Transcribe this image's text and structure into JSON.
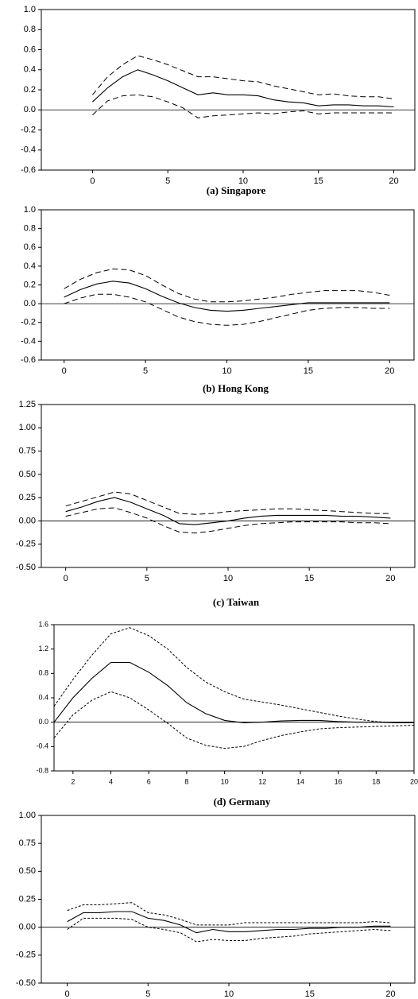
{
  "chart_data": [
    {
      "type": "line",
      "title": "(a) Singapore",
      "x": [
        0,
        1,
        2,
        3,
        4,
        5,
        6,
        7,
        8,
        9,
        10,
        11,
        12,
        13,
        14,
        15,
        16,
        17,
        18,
        19,
        20
      ],
      "xlim": [
        -3.4,
        21.4
      ],
      "xticks": [
        0,
        5,
        10,
        15,
        20
      ],
      "ylim": [
        -0.6,
        1.0
      ],
      "yticks": [
        {
          "value": 1.0,
          "label": "1.0"
        },
        0.8,
        0.6,
        0.4,
        0.2,
        {
          "value": 0,
          "label": "0.0"
        },
        -0.2,
        -0.4,
        -0.6
      ],
      "series": [
        {
          "color": "#000000",
          "dash": "solid",
          "values": [
            0.08,
            0.22,
            0.33,
            0.4,
            0.35,
            0.29,
            0.22,
            0.15,
            0.17,
            0.15,
            0.15,
            0.14,
            0.1,
            0.08,
            0.07,
            0.04,
            0.05,
            0.05,
            0.04,
            0.04,
            0.03
          ]
        },
        {
          "color": "#000000",
          "dash": "dashed",
          "values": [
            0.15,
            0.33,
            0.45,
            0.54,
            0.5,
            0.45,
            0.39,
            0.33,
            0.33,
            0.31,
            0.29,
            0.28,
            0.24,
            0.21,
            0.18,
            0.15,
            0.16,
            0.14,
            0.13,
            0.13,
            0.11
          ]
        },
        {
          "color": "#000000",
          "dash": "dashed",
          "values": [
            -0.05,
            0.09,
            0.14,
            0.15,
            0.13,
            0.08,
            0.02,
            -0.08,
            -0.06,
            -0.05,
            -0.04,
            -0.03,
            -0.04,
            -0.02,
            -0.01,
            -0.04,
            -0.03,
            -0.03,
            -0.03,
            -0.03,
            -0.03
          ]
        }
      ]
    },
    {
      "type": "line",
      "title": "(b) Hong Kong",
      "x": [
        0,
        1,
        2,
        3,
        4,
        5,
        6,
        7,
        8,
        9,
        10,
        11,
        12,
        13,
        14,
        15,
        16,
        17,
        18,
        19,
        20
      ],
      "xlim": [
        -1.4,
        21.5
      ],
      "xticks": [
        0,
        5,
        10,
        15,
        20
      ],
      "ylim": [
        -0.6,
        1.0
      ],
      "yticks": [
        {
          "value": 1.0,
          "label": "1.0"
        },
        0.8,
        0.6,
        0.4,
        0.2,
        {
          "value": 0,
          "label": "0.0"
        },
        -0.2,
        -0.4,
        -0.6
      ],
      "series": [
        {
          "color": "#000000",
          "dash": "solid",
          "values": [
            0.07,
            0.15,
            0.21,
            0.24,
            0.22,
            0.16,
            0.08,
            0.01,
            -0.04,
            -0.07,
            -0.08,
            -0.07,
            -0.05,
            -0.03,
            -0.01,
            0.01,
            0.01,
            0.01,
            0.01,
            0.01,
            0.01
          ]
        },
        {
          "color": "#000000",
          "dash": "dashed",
          "values": [
            0.16,
            0.26,
            0.33,
            0.37,
            0.36,
            0.3,
            0.2,
            0.11,
            0.05,
            0.02,
            0.02,
            0.03,
            0.05,
            0.07,
            0.1,
            0.12,
            0.14,
            0.14,
            0.14,
            0.12,
            0.09
          ]
        },
        {
          "color": "#000000",
          "dash": "dashed",
          "values": [
            0.0,
            0.06,
            0.1,
            0.1,
            0.07,
            0.02,
            -0.06,
            -0.14,
            -0.19,
            -0.22,
            -0.23,
            -0.22,
            -0.19,
            -0.15,
            -0.11,
            -0.07,
            -0.05,
            -0.04,
            -0.04,
            -0.05,
            -0.05
          ]
        }
      ]
    },
    {
      "type": "line",
      "title": "(c) Taiwan",
      "x": [
        0,
        1,
        2,
        3,
        4,
        5,
        6,
        7,
        8,
        9,
        10,
        11,
        12,
        13,
        14,
        15,
        16,
        17,
        18,
        19,
        20
      ],
      "xlim": [
        -1.5,
        21.5
      ],
      "xticks": [
        0,
        5,
        10,
        15,
        20
      ],
      "ylim": [
        -0.5,
        1.25
      ],
      "yticks": [
        1.25,
        {
          "value": 1.0,
          "label": "1.00"
        },
        0.75,
        {
          "value": 0.5,
          "label": "0.50"
        },
        0.25,
        {
          "value": 0,
          "label": "0.00"
        },
        -0.25,
        {
          "value": -0.5,
          "label": "-0.50"
        }
      ],
      "series": [
        {
          "color": "#000000",
          "dash": "solid",
          "values": [
            0.1,
            0.15,
            0.21,
            0.25,
            0.2,
            0.13,
            0.06,
            -0.03,
            -0.04,
            -0.02,
            0.0,
            0.03,
            0.05,
            0.06,
            0.06,
            0.06,
            0.06,
            0.05,
            0.05,
            0.04,
            0.03
          ]
        },
        {
          "color": "#000000",
          "dash": "dashed",
          "values": [
            0.16,
            0.21,
            0.26,
            0.31,
            0.29,
            0.22,
            0.15,
            0.08,
            0.07,
            0.08,
            0.1,
            0.11,
            0.12,
            0.13,
            0.13,
            0.12,
            0.11,
            0.1,
            0.09,
            0.08,
            0.08
          ]
        },
        {
          "color": "#000000",
          "dash": "dashed",
          "values": [
            0.05,
            0.09,
            0.13,
            0.14,
            0.09,
            0.03,
            -0.05,
            -0.12,
            -0.13,
            -0.11,
            -0.08,
            -0.05,
            -0.03,
            -0.02,
            -0.01,
            -0.01,
            -0.01,
            -0.01,
            -0.02,
            -0.02,
            -0.03
          ]
        }
      ]
    },
    {
      "type": "line",
      "title": "(d) Germany",
      "x": [
        1,
        2,
        3,
        4,
        5,
        6,
        7,
        8,
        9,
        10,
        11,
        12,
        13,
        14,
        15,
        16,
        17,
        18,
        19,
        20
      ],
      "xlim": [
        1,
        20
      ],
      "xticks": [
        2,
        4,
        6,
        8,
        10,
        12,
        14,
        16,
        18,
        20
      ],
      "ylim": [
        -0.8,
        1.6
      ],
      "yticks": [
        1.6,
        1.2,
        0.8,
        0.4,
        {
          "value": 0,
          "label": "0.0"
        },
        -0.4,
        -0.8
      ],
      "series": [
        {
          "color": "#000000",
          "dash": "solid",
          "values": [
            0.0,
            0.4,
            0.72,
            0.98,
            0.98,
            0.82,
            0.6,
            0.32,
            0.14,
            0.03,
            -0.01,
            0.0,
            0.02,
            0.03,
            0.03,
            0.01,
            0.0,
            0.0,
            -0.01,
            -0.01
          ]
        },
        {
          "color": "#000000",
          "dash": "dotted",
          "values": [
            0.26,
            0.7,
            1.1,
            1.45,
            1.55,
            1.42,
            1.2,
            0.9,
            0.66,
            0.5,
            0.38,
            0.33,
            0.28,
            0.22,
            0.16,
            0.1,
            0.05,
            0.01,
            -0.01,
            -0.01
          ]
        },
        {
          "color": "#000000",
          "dash": "dotted",
          "values": [
            -0.26,
            0.12,
            0.36,
            0.5,
            0.4,
            0.2,
            -0.02,
            -0.26,
            -0.38,
            -0.43,
            -0.4,
            -0.3,
            -0.22,
            -0.16,
            -0.11,
            -0.09,
            -0.08,
            -0.07,
            -0.06,
            -0.05
          ]
        }
      ]
    },
    {
      "type": "line",
      "x": [
        0,
        1,
        2,
        3,
        4,
        5,
        6,
        7,
        8,
        9,
        10,
        11,
        12,
        13,
        14,
        15,
        16,
        17,
        18,
        19,
        20
      ],
      "xlim": [
        -1.6,
        21.5
      ],
      "xticks": [
        0,
        5,
        10,
        15,
        20
      ],
      "ylim": [
        -0.5,
        1.0
      ],
      "yticks": [
        {
          "value": 1.0,
          "label": "1.00"
        },
        0.75,
        {
          "value": 0.5,
          "label": "0.50"
        },
        0.25,
        {
          "value": 0,
          "label": "0.00"
        },
        -0.25,
        {
          "value": -0.5,
          "label": "-0.50"
        }
      ],
      "series": [
        {
          "color": "#000000",
          "dash": "solid",
          "values": [
            0.05,
            0.13,
            0.13,
            0.14,
            0.14,
            0.08,
            0.06,
            0.02,
            -0.05,
            -0.02,
            -0.04,
            -0.04,
            -0.03,
            -0.02,
            -0.02,
            -0.01,
            -0.01,
            0.0,
            0.0,
            0.01,
            0.01
          ]
        },
        {
          "color": "#000000",
          "dash": "dotted",
          "values": [
            0.15,
            0.2,
            0.2,
            0.21,
            0.22,
            0.13,
            0.11,
            0.07,
            0.02,
            0.02,
            0.02,
            0.04,
            0.04,
            0.04,
            0.04,
            0.04,
            0.04,
            0.04,
            0.04,
            0.05,
            0.04
          ]
        },
        {
          "color": "#000000",
          "dash": "dotted",
          "values": [
            -0.02,
            0.08,
            0.08,
            0.08,
            0.07,
            0.0,
            -0.02,
            -0.05,
            -0.13,
            -0.11,
            -0.12,
            -0.12,
            -0.1,
            -0.09,
            -0.08,
            -0.06,
            -0.05,
            -0.04,
            -0.03,
            -0.02,
            -0.03
          ]
        }
      ]
    }
  ]
}
